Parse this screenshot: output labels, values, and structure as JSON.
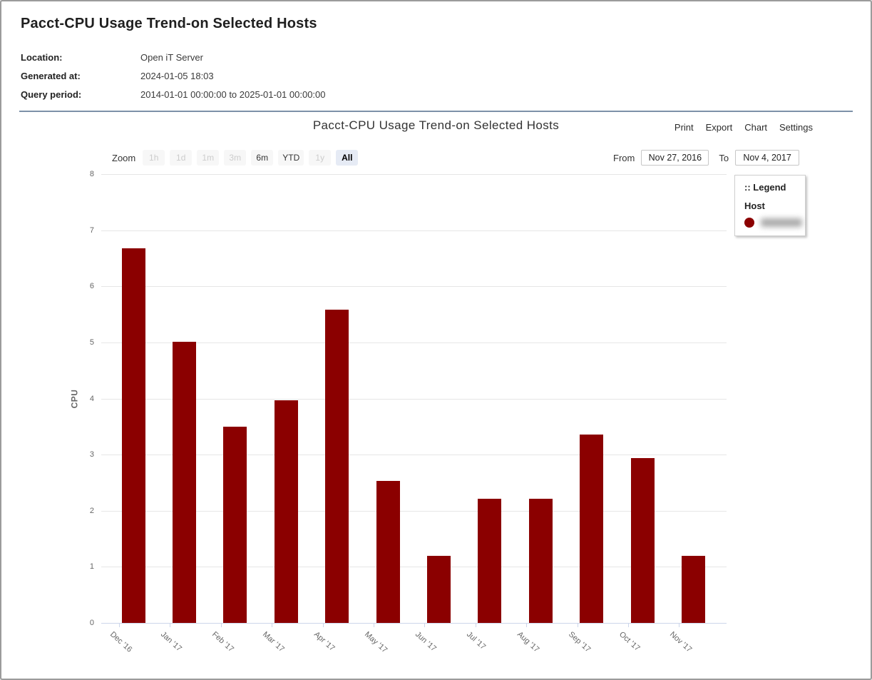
{
  "page": {
    "title": "Pacct-CPU Usage Trend-on Selected Hosts",
    "meta": [
      {
        "label": "Location:",
        "value": "Open iT Server"
      },
      {
        "label": "Generated at:",
        "value": "2024-01-05 18:03"
      },
      {
        "label": "Query period:",
        "value": "2014-01-01 00:00:00 to 2025-01-01 00:00:00"
      }
    ]
  },
  "chart": {
    "title": "Pacct-CPU Usage Trend-on Selected Hosts",
    "menu": [
      "Print",
      "Export",
      "Chart",
      "Settings"
    ],
    "range_selector": {
      "zoom_label": "Zoom",
      "buttons": [
        {
          "label": "1h",
          "state": "disabled"
        },
        {
          "label": "1d",
          "state": "disabled"
        },
        {
          "label": "1m",
          "state": "disabled"
        },
        {
          "label": "3m",
          "state": "disabled"
        },
        {
          "label": "6m",
          "state": "enabled"
        },
        {
          "label": "YTD",
          "state": "enabled"
        },
        {
          "label": "1y",
          "state": "disabled"
        },
        {
          "label": "All",
          "state": "selected"
        }
      ],
      "from_label": "From",
      "from_value": "Nov 27, 2016",
      "to_label": "To",
      "to_value": "Nov 4, 2017"
    },
    "legend": {
      "title": ":: Legend",
      "group_label": "Host",
      "items": [
        {
          "label_redacted": true,
          "marker_color": "#8b0000"
        }
      ]
    }
  },
  "chart_data": {
    "type": "bar",
    "title": "Pacct-CPU Usage Trend-on Selected Hosts",
    "categories": [
      "Dec '16",
      "Jan '17",
      "Feb '17",
      "Mar '17",
      "Apr '17",
      "May '17",
      "Jun '17",
      "Jul '17",
      "Aug '17",
      "Sep '17",
      "Oct '17",
      "Nov '17"
    ],
    "series": [
      {
        "name": "Host (redacted)",
        "values": [
          6.68,
          5.01,
          3.5,
          3.97,
          5.58,
          2.53,
          1.19,
          2.21,
          2.21,
          3.36,
          2.94,
          1.2
        ]
      }
    ],
    "xlabel": "",
    "ylabel": "CPU",
    "ylim": [
      0,
      8
    ],
    "ytick_interval": 1,
    "grid": "horizontal-only",
    "bar_color": "#8b0000",
    "legend_position": "top-right-floating"
  },
  "colors": {
    "bar": "#8b0000",
    "selected_range_button_bg": "#e6ebf5",
    "divider": "#7d91a8",
    "axis_line": "#ccd6eb",
    "grid_line": "#e6e6e6",
    "axis_text": "#666666"
  }
}
